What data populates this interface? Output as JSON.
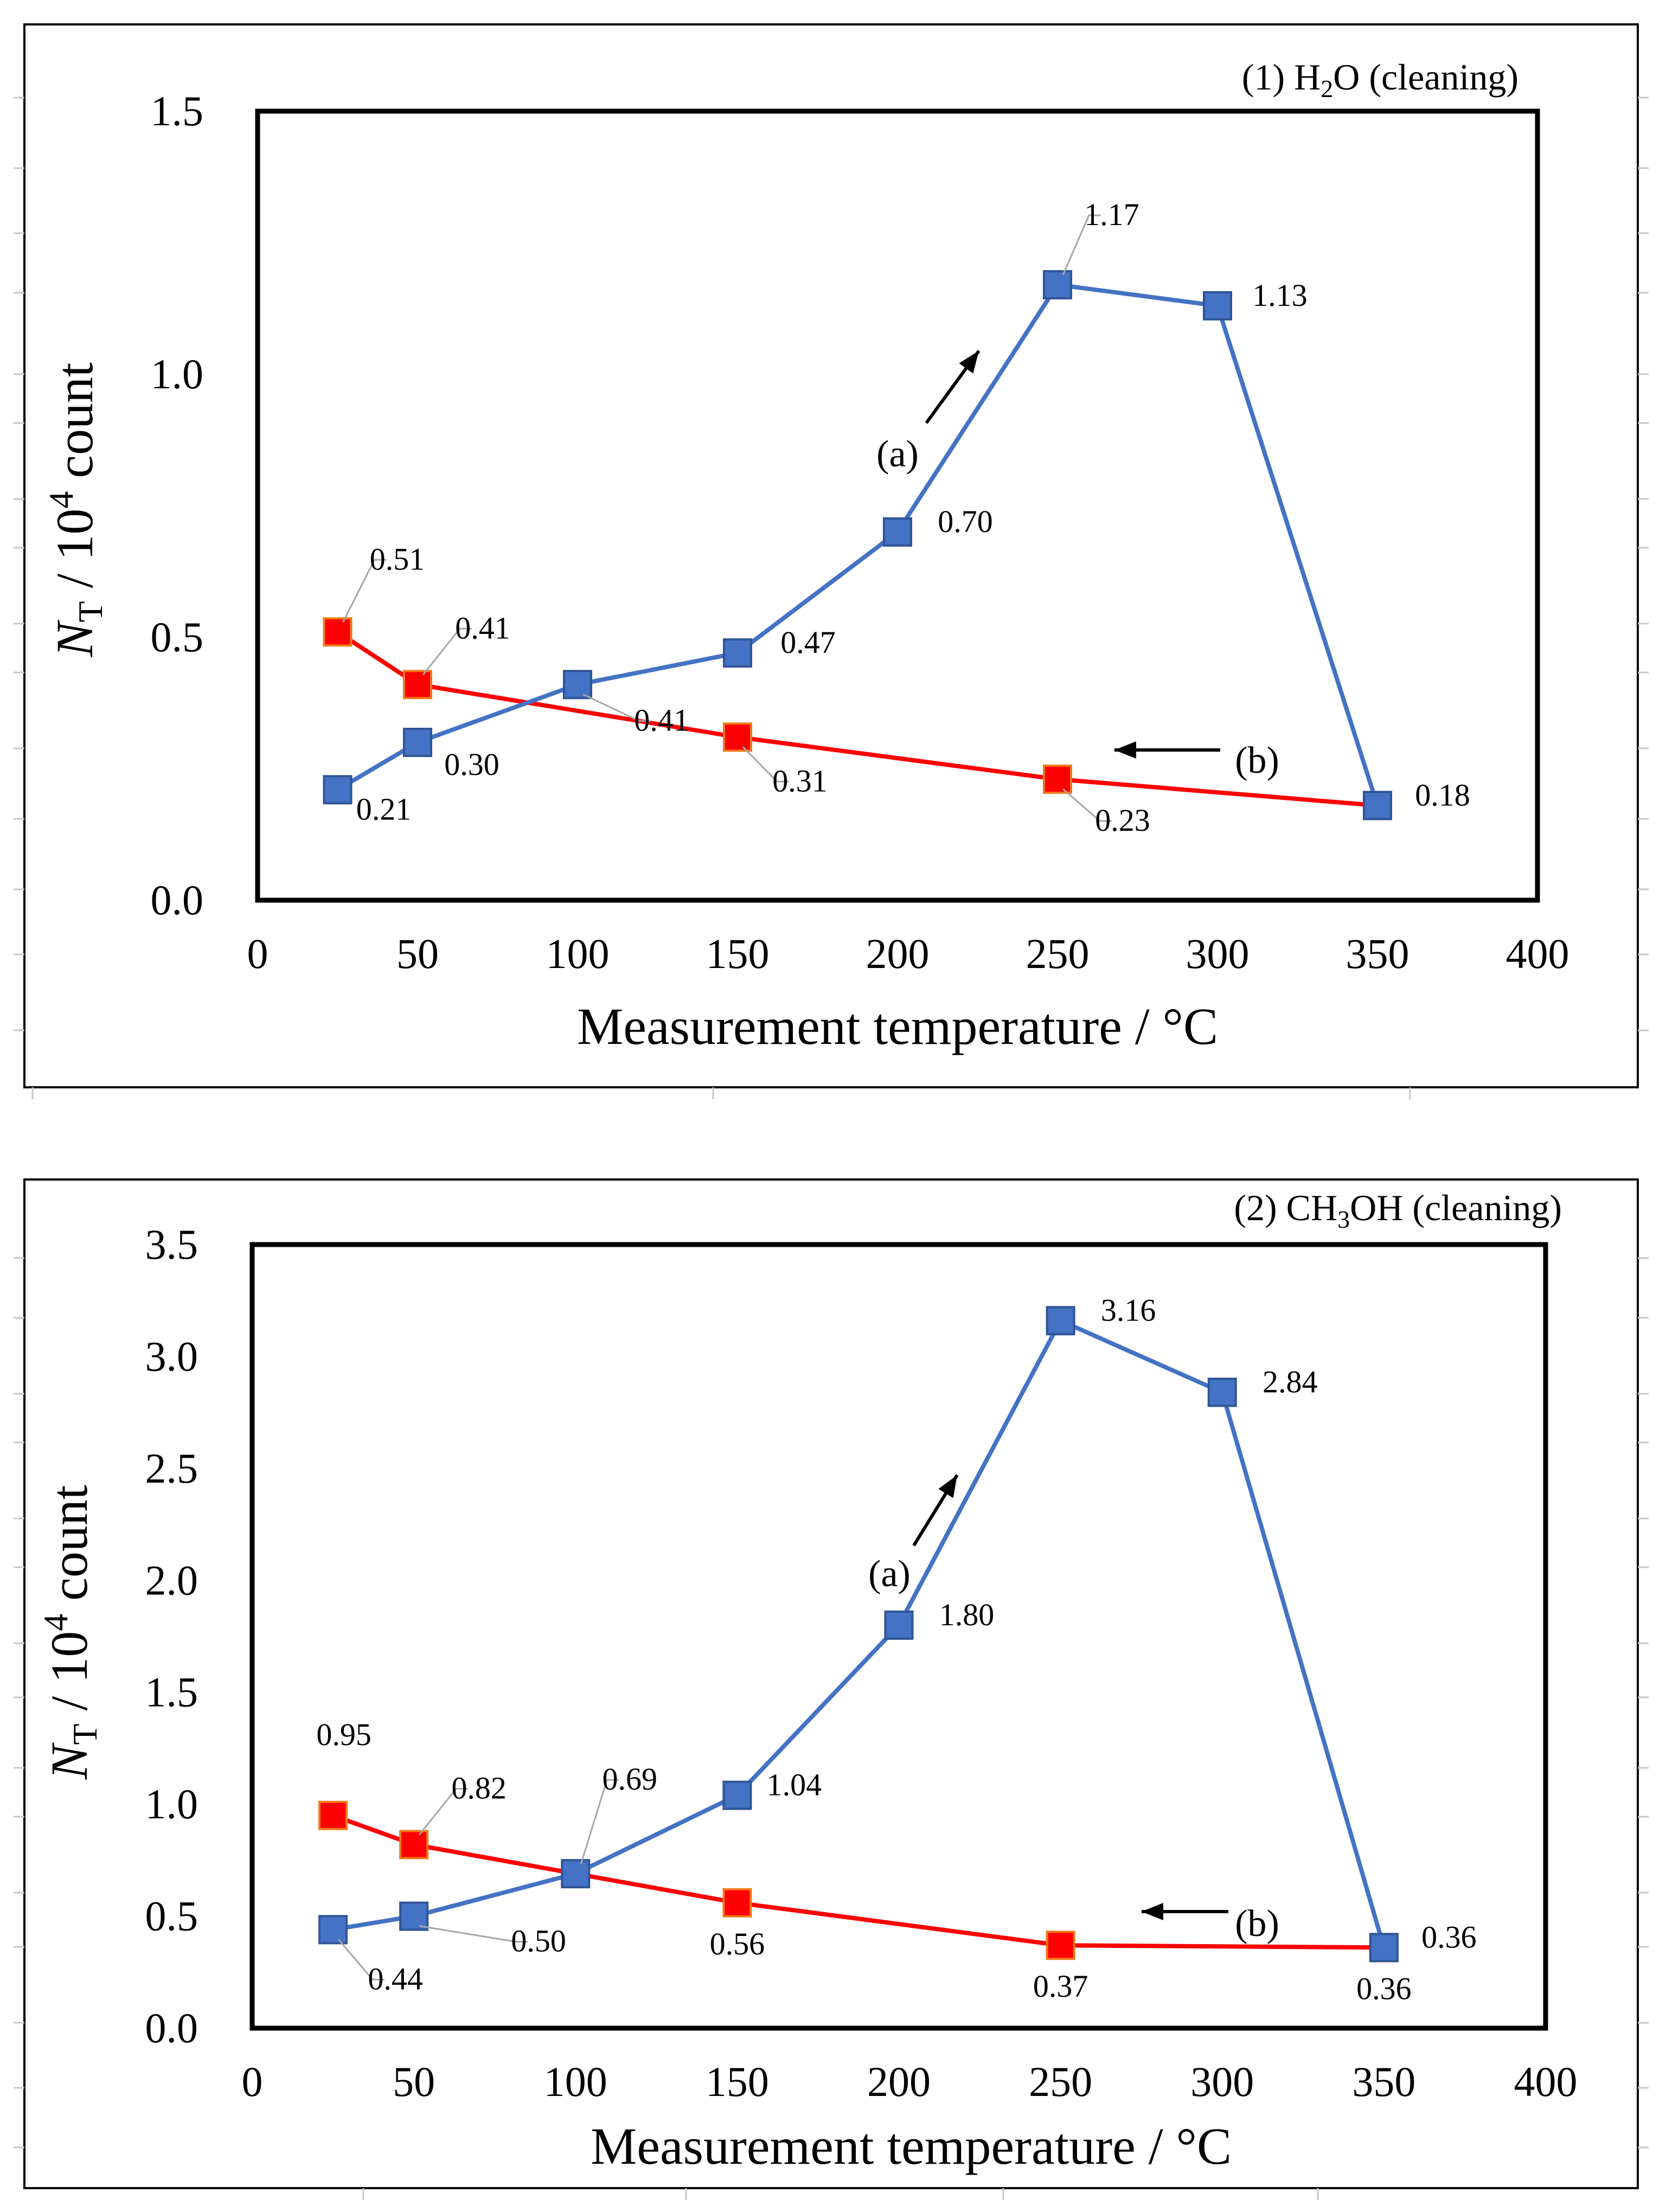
{
  "chart_data": [
    {
      "type": "line",
      "title": "",
      "panel_label": {
        "prefix": "(1) H",
        "sub": "2",
        "suffix": "O (cleaning)"
      },
      "xlabel": "Measurement temperature / °C",
      "ylabel": {
        "main": "N",
        "sub": "T",
        "mid": " / 10",
        "sup": "4",
        "end": " count"
      },
      "xlim": [
        0,
        400
      ],
      "ylim": [
        0,
        1.5
      ],
      "xticks": [
        0,
        50,
        100,
        150,
        200,
        250,
        300,
        350,
        400
      ],
      "xtick_labels": [
        "0",
        "50",
        "100",
        "150",
        "200",
        "250",
        "300",
        "350",
        "400"
      ],
      "yticks": [
        0,
        0.5,
        1.0,
        1.5
      ],
      "ytick_labels": [
        "0.0",
        "0.5",
        "1.0",
        "1.5"
      ],
      "grid": false,
      "series": [
        {
          "id": "a",
          "color": "#4472c4",
          "x": [
            25,
            50,
            100,
            150,
            200,
            250,
            300,
            350
          ],
          "y": [
            0.21,
            0.3,
            0.41,
            0.47,
            0.7,
            1.17,
            1.13,
            0.18
          ],
          "labels": [
            "0.21",
            "0.30",
            "0.41",
            "0.47",
            "0.70",
            "1.17",
            "1.13",
            ""
          ]
        },
        {
          "id": "b",
          "color": "#ff0000",
          "x": [
            25,
            50,
            150,
            250,
            350
          ],
          "y": [
            0.51,
            0.41,
            0.31,
            0.23,
            0.18
          ],
          "labels": [
            "0.51",
            "0.41",
            "0.31",
            "0.23",
            "0.18"
          ]
        }
      ],
      "annotations": [
        {
          "text": "(a)",
          "series": "a",
          "direction": "up-right"
        },
        {
          "text": "(b)",
          "series": "b",
          "direction": "left"
        }
      ]
    },
    {
      "type": "line",
      "title": "",
      "panel_label": {
        "prefix": "(2) CH",
        "sub": "3",
        "suffix": "OH (cleaning)"
      },
      "xlabel": "Measurement temperature / °C",
      "ylabel": {
        "main": "N",
        "sub": "T",
        "mid": " / 10",
        "sup": "4",
        "end": " count"
      },
      "xlim": [
        0,
        400
      ],
      "ylim": [
        0,
        3.5
      ],
      "xticks": [
        0,
        50,
        100,
        150,
        200,
        250,
        300,
        350,
        400
      ],
      "xtick_labels": [
        "0",
        "50",
        "100",
        "150",
        "200",
        "250",
        "300",
        "350",
        "400"
      ],
      "yticks": [
        0,
        0.5,
        1.0,
        1.5,
        2.0,
        2.5,
        3.0,
        3.5
      ],
      "ytick_labels": [
        "0.0",
        "0.5",
        "1.0",
        "1.5",
        "2.0",
        "2.5",
        "3.0",
        "3.5"
      ],
      "grid": false,
      "series": [
        {
          "id": "a",
          "color": "#4472c4",
          "x": [
            25,
            50,
            100,
            150,
            200,
            250,
            300,
            350
          ],
          "y": [
            0.44,
            0.5,
            0.69,
            1.04,
            1.8,
            3.16,
            2.84,
            0.36
          ],
          "labels": [
            "0.44",
            "0.50",
            "0.69",
            "1.04",
            "1.80",
            "3.16",
            "2.84",
            "0.36"
          ]
        },
        {
          "id": "b",
          "color": "#ff0000",
          "x": [
            25,
            50,
            150,
            250,
            350
          ],
          "y": [
            0.95,
            0.82,
            0.56,
            0.37,
            0.36
          ],
          "labels": [
            "0.95",
            "0.82",
            "0.56",
            "0.37",
            "0.36"
          ]
        }
      ],
      "annotations": [
        {
          "text": "(a)",
          "series": "a",
          "direction": "up-right"
        },
        {
          "text": "(b)",
          "series": "b",
          "direction": "left"
        }
      ]
    }
  ]
}
